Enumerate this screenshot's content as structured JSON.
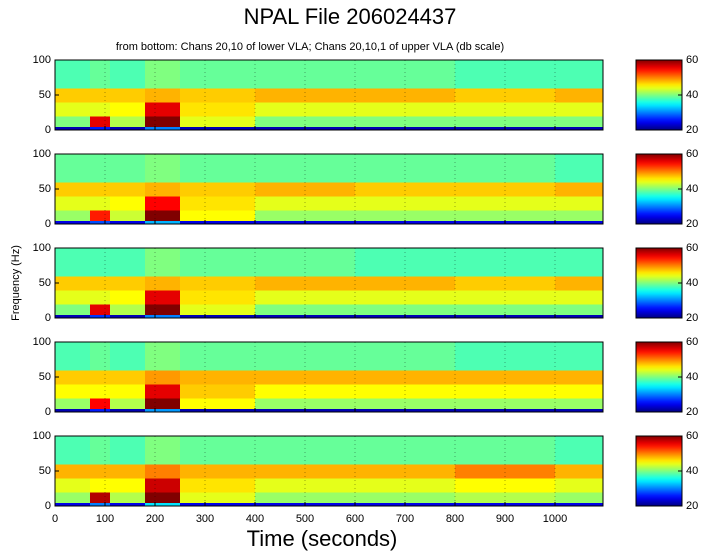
{
  "title": "NPAL File 206024437",
  "subtitle": "from bottom: Chans 20,10 of lower VLA; Chans 20,10,1 of upper VLA    (db scale)",
  "xlabel": "Time (seconds)",
  "ylabel": "Frequency (Hz)",
  "chart_data": [
    {
      "type": "heatmap",
      "colormap": "jet",
      "grid": true,
      "show_xticklabels": false,
      "x": [
        0,
        70,
        110,
        180,
        250,
        400,
        600,
        800,
        1000,
        1096
      ],
      "y": [
        0,
        5,
        20,
        40,
        60,
        100
      ],
      "values": [
        [
          22,
          26,
          22,
          30,
          22,
          22,
          22,
          22,
          22
        ],
        [
          40,
          56,
          42,
          60,
          44,
          40,
          40,
          40,
          40
        ],
        [
          44,
          44,
          45,
          56,
          46,
          44,
          44,
          44,
          44
        ],
        [
          47,
          47,
          47,
          48,
          47,
          48,
          48,
          47,
          48
        ],
        [
          38,
          39,
          38,
          40,
          39,
          39,
          39,
          38,
          38
        ]
      ],
      "xlim": [
        0,
        1096
      ],
      "ylim": [
        0,
        100
      ],
      "yticks": [
        0,
        50,
        100
      ],
      "xticks": [
        0,
        100,
        200,
        300,
        400,
        500,
        600,
        700,
        800,
        900,
        1000
      ],
      "clim": [
        20,
        60
      ],
      "cticks": [
        20,
        40,
        60
      ]
    },
    {
      "type": "heatmap",
      "colormap": "jet",
      "grid": true,
      "show_xticklabels": false,
      "x": [
        0,
        70,
        110,
        180,
        250,
        400,
        600,
        800,
        1000,
        1096
      ],
      "y": [
        0,
        5,
        20,
        40,
        60,
        100
      ],
      "values": [
        [
          24,
          28,
          24,
          32,
          24,
          24,
          24,
          24,
          24
        ],
        [
          41,
          54,
          43,
          60,
          45,
          41,
          41,
          41,
          41
        ],
        [
          44,
          44,
          45,
          55,
          46,
          44,
          44,
          44,
          44
        ],
        [
          47,
          47,
          47,
          48,
          47,
          48,
          47,
          47,
          48
        ],
        [
          39,
          39,
          39,
          40,
          39,
          39,
          39,
          39,
          38
        ]
      ],
      "xlim": [
        0,
        1096
      ],
      "ylim": [
        0,
        100
      ],
      "yticks": [
        0,
        50,
        100
      ],
      "xticks": [
        0,
        100,
        200,
        300,
        400,
        500,
        600,
        700,
        800,
        900,
        1000
      ],
      "clim": [
        20,
        60
      ],
      "cticks": [
        20,
        40,
        60
      ]
    },
    {
      "type": "heatmap",
      "colormap": "jet",
      "grid": true,
      "show_xticklabels": false,
      "x": [
        0,
        70,
        110,
        180,
        250,
        400,
        600,
        800,
        1000,
        1096
      ],
      "y": [
        0,
        5,
        20,
        40,
        60,
        100
      ],
      "values": [
        [
          22,
          27,
          22,
          30,
          22,
          22,
          22,
          22,
          22
        ],
        [
          40,
          56,
          42,
          60,
          44,
          40,
          40,
          40,
          40
        ],
        [
          44,
          44,
          45,
          56,
          46,
          44,
          44,
          44,
          44
        ],
        [
          47,
          47,
          47,
          48,
          47,
          48,
          48,
          47,
          48
        ],
        [
          38,
          38,
          38,
          40,
          39,
          39,
          38,
          38,
          38
        ]
      ],
      "xlim": [
        0,
        1096
      ],
      "ylim": [
        0,
        100
      ],
      "yticks": [
        0,
        50,
        100
      ],
      "xticks": [
        0,
        100,
        200,
        300,
        400,
        500,
        600,
        700,
        800,
        900,
        1000
      ],
      "clim": [
        20,
        60
      ],
      "cticks": [
        20,
        40,
        60
      ]
    },
    {
      "type": "heatmap",
      "colormap": "jet",
      "grid": true,
      "show_xticklabels": false,
      "x": [
        0,
        70,
        110,
        180,
        250,
        400,
        600,
        800,
        1000,
        1096
      ],
      "y": [
        0,
        5,
        20,
        40,
        60,
        100
      ],
      "values": [
        [
          22,
          26,
          22,
          31,
          22,
          22,
          22,
          22,
          22
        ],
        [
          41,
          55,
          42,
          60,
          45,
          41,
          41,
          41,
          41
        ],
        [
          45,
          45,
          45,
          56,
          47,
          45,
          45,
          45,
          45
        ],
        [
          47,
          47,
          47,
          49,
          48,
          48,
          48,
          48,
          48
        ],
        [
          38,
          39,
          38,
          40,
          39,
          39,
          39,
          38,
          38
        ]
      ],
      "xlim": [
        0,
        1096
      ],
      "ylim": [
        0,
        100
      ],
      "yticks": [
        0,
        50,
        100
      ],
      "xticks": [
        0,
        100,
        200,
        300,
        400,
        500,
        600,
        700,
        800,
        900,
        1000
      ],
      "clim": [
        20,
        60
      ],
      "cticks": [
        20,
        40,
        60
      ]
    },
    {
      "type": "heatmap",
      "colormap": "jet",
      "grid": true,
      "show_xticklabels": true,
      "x": [
        0,
        70,
        110,
        180,
        250,
        400,
        600,
        800,
        1000,
        1096
      ],
      "y": [
        0,
        5,
        20,
        40,
        60,
        100
      ],
      "values": [
        [
          24,
          30,
          24,
          34,
          24,
          24,
          24,
          24,
          24
        ],
        [
          41,
          58,
          42,
          60,
          44,
          41,
          41,
          42,
          41
        ],
        [
          44,
          45,
          45,
          57,
          46,
          44,
          44,
          45,
          44
        ],
        [
          48,
          48,
          48,
          50,
          48,
          48,
          48,
          50,
          48
        ],
        [
          38,
          39,
          38,
          40,
          39,
          39,
          39,
          39,
          38
        ]
      ],
      "xlim": [
        0,
        1096
      ],
      "ylim": [
        0,
        100
      ],
      "yticks": [
        0,
        50,
        100
      ],
      "xticks": [
        0,
        100,
        200,
        300,
        400,
        500,
        600,
        700,
        800,
        900,
        1000
      ],
      "clim": [
        20,
        60
      ],
      "cticks": [
        20,
        40,
        60
      ]
    }
  ]
}
